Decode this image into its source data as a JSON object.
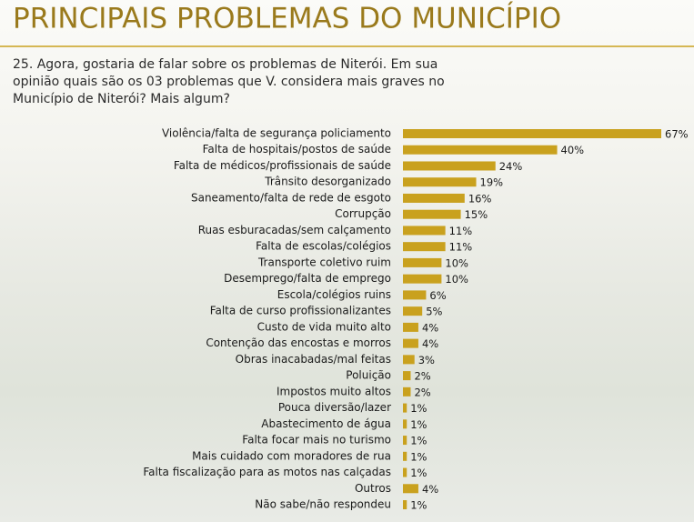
{
  "chart_data": {
    "type": "bar",
    "orientation": "horizontal",
    "title": "PRINCIPAIS PROBLEMAS DO MUNICÍPIO",
    "subtitle": "25. Agora, gostaria de falar sobre os problemas de Niterói. Em sua opinião quais são os 03 problemas que V. considera mais graves no Município de Niterói? Mais algum?",
    "categories": [
      "Violência/falta de segurança policiamento",
      "Falta de hospitais/postos de saúde",
      "Falta de médicos/profissionais de saúde",
      "Trânsito desorganizado",
      "Saneamento/falta de rede de esgoto",
      "Corrupção",
      "Ruas esburacadas/sem calçamento",
      "Falta de escolas/colégios",
      "Transporte coletivo ruim",
      "Desemprego/falta de emprego",
      "Escola/colégios ruins",
      "Falta de curso profissionalizantes",
      "Custo de vida muito alto",
      "Contenção das encostas e morros",
      "Obras inacabadas/mal feitas",
      "Poluição",
      "Impostos muito altos",
      "Pouca diversão/lazer",
      "Abastecimento de água",
      "Falta focar mais no turismo",
      "Mais cuidado com moradores de rua",
      "Falta fiscalização para as motos nas calçadas",
      "Outros",
      "Não sabe/não respondeu"
    ],
    "values": [
      67,
      40,
      24,
      19,
      16,
      15,
      11,
      11,
      10,
      10,
      6,
      5,
      4,
      4,
      3,
      2,
      2,
      1,
      1,
      1,
      1,
      1,
      4,
      1
    ],
    "value_labels": [
      "67%",
      "40%",
      "24%",
      "19%",
      "16%",
      "15%",
      "11%",
      "11%",
      "10%",
      "10%",
      "6%",
      "5%",
      "4%",
      "4%",
      "3%",
      "2%",
      "2%",
      "1%",
      "1%",
      "1%",
      "1%",
      "1%",
      "4%",
      "1%"
    ],
    "color": "#c9a11e"
  }
}
